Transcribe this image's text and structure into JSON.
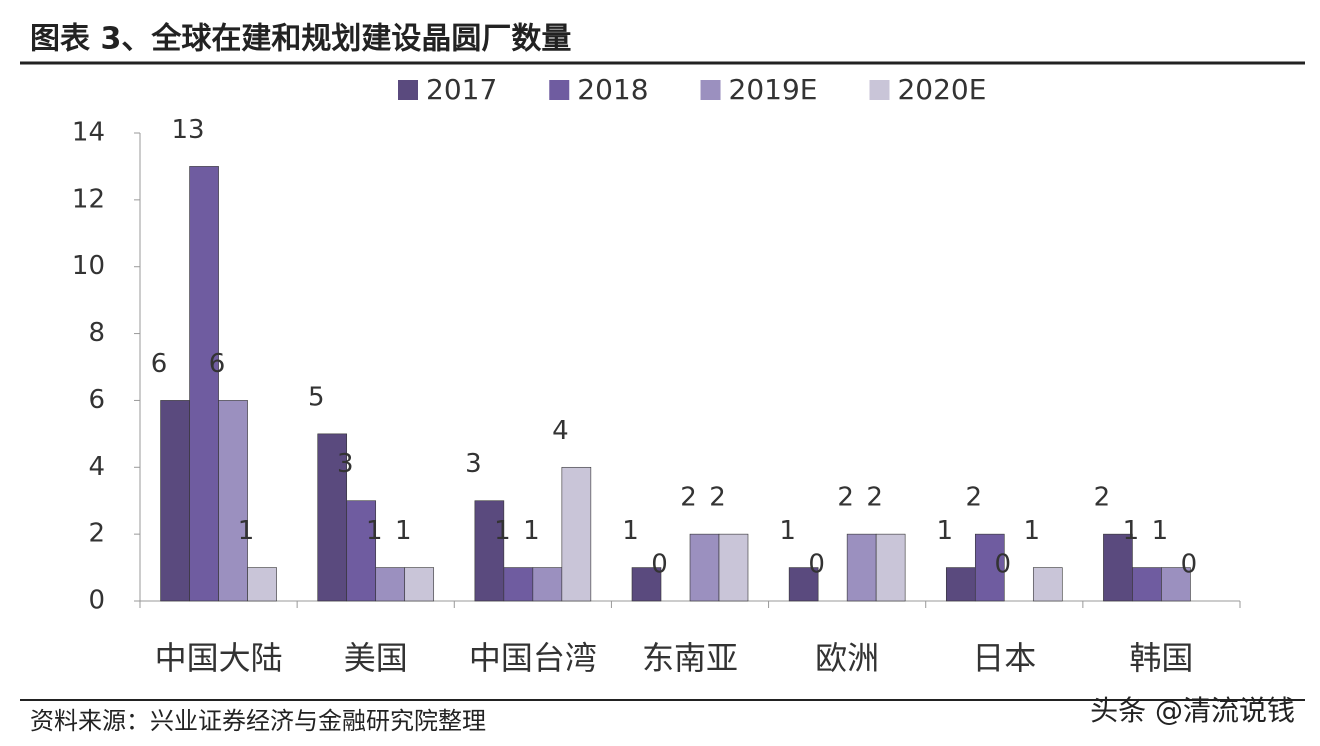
{
  "chart_data": {
    "type": "bar",
    "title": "图表 3、全球在建和规划建设晶圆厂数量",
    "source": "资料来源：兴业证券经济与金融研究院整理",
    "watermark": "头条 @清流说钱",
    "categories": [
      "中国大陆",
      "美国",
      "中国台湾",
      "东南亚",
      "欧洲",
      "日本",
      "韩国"
    ],
    "series": [
      {
        "name": "2017",
        "color": "#5a4a7e",
        "values": [
          6,
          5,
          3,
          1,
          1,
          1,
          2
        ]
      },
      {
        "name": "2018",
        "color": "#6f5ca0",
        "values": [
          13,
          3,
          1,
          0,
          0,
          2,
          1
        ]
      },
      {
        "name": "2019E",
        "color": "#9b90bf",
        "values": [
          6,
          1,
          1,
          2,
          2,
          0,
          1
        ]
      },
      {
        "name": "2020E",
        "color": "#c9c5d8",
        "values": [
          1,
          1,
          4,
          2,
          2,
          1,
          0
        ]
      }
    ],
    "ylim": [
      0,
      14
    ],
    "yticks": [
      0,
      2,
      4,
      6,
      8,
      10,
      12,
      14
    ],
    "grid": false,
    "legend": "top"
  }
}
